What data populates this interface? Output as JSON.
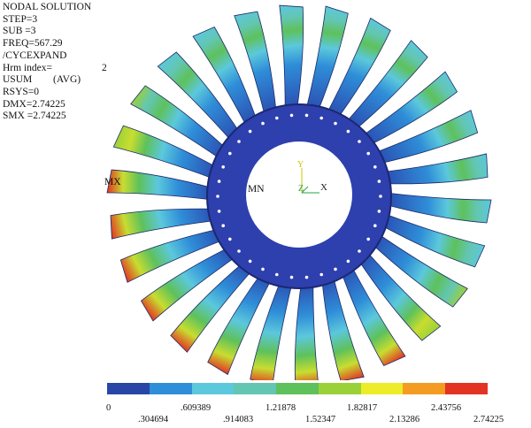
{
  "info": {
    "title": "NODAL SOLUTION",
    "step": "STEP=3",
    "sub": "SUB =3",
    "freq": "FREQ=567.29",
    "cycexpand": "/CYCEXPAND",
    "hrm_label": "Hrm index=",
    "hrm_value": "2",
    "usum_label": "USUM",
    "usum_avg": "(AVG)",
    "rsys": "RSYS=0",
    "dmx": "DMX=2.74225",
    "smx": "SMX =2.74225"
  },
  "markers": {
    "mx": "MX",
    "mn": "MN"
  },
  "axes": {
    "y": "Y",
    "z": "Z",
    "x": "X"
  },
  "legend": {
    "colors": [
      "#2846a6",
      "#2f8ed8",
      "#5cc8dc",
      "#63c6b2",
      "#5ec15c",
      "#9bd138",
      "#ecec28",
      "#f49c22",
      "#e23324"
    ],
    "labels_top": [
      "0",
      ".609389",
      "1.21878",
      "1.82817",
      "2.43756"
    ],
    "labels_bottom": [
      ".304694",
      ".914083",
      "1.52347",
      "2.13286",
      "2.74225"
    ]
  },
  "colors": {
    "hub": "#2e3fae",
    "hub_edge": "#1b2870",
    "blade_outline": "#1c2a66"
  }
}
